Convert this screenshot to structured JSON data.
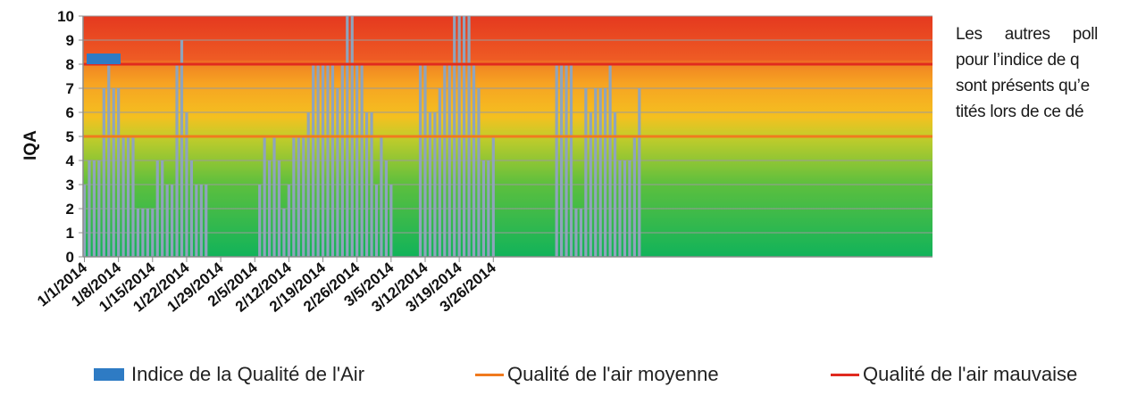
{
  "chart_data": {
    "type": "bar",
    "title": "",
    "ylabel": "IQA",
    "xlabel": "",
    "ylim": [
      0,
      10
    ],
    "yticks": [
      0,
      1,
      2,
      3,
      4,
      5,
      6,
      7,
      8,
      9,
      10
    ],
    "x_start": "1/1/2014",
    "xtick_labels": [
      "1/1/2014",
      "1/8/2014",
      "1/15/2014",
      "1/22/2014",
      "1/29/2014",
      "2/5/2014",
      "2/12/2014",
      "2/19/2014",
      "2/26/2014",
      "3/5/2014",
      "3/12/2014",
      "3/19/2014",
      "3/26/2014"
    ],
    "values": [
      3,
      4,
      4,
      4,
      7,
      8,
      7,
      7,
      5,
      5,
      5,
      2,
      2,
      2,
      2,
      4,
      4,
      3,
      3,
      8,
      9,
      6,
      4,
      3,
      3,
      3,
      0,
      0,
      0,
      0,
      0,
      0,
      0,
      0,
      0,
      0,
      3,
      5,
      4,
      5,
      4,
      2,
      3,
      5,
      5,
      5,
      6,
      8,
      8,
      8,
      8,
      8,
      7,
      8,
      10,
      10,
      8,
      8,
      6,
      6,
      3,
      5,
      4,
      3,
      0,
      0,
      0,
      0,
      0,
      8,
      8,
      6,
      6,
      7,
      8,
      8,
      10,
      10,
      10,
      10,
      8,
      7,
      4,
      4,
      5,
      0,
      0,
      0,
      0,
      0,
      0,
      0,
      0,
      0,
      0,
      0,
      0,
      8,
      8,
      8,
      8,
      2,
      2,
      7,
      6,
      7,
      7,
      7,
      8,
      6,
      4,
      4,
      4,
      5,
      7
    ],
    "series": [
      {
        "name": "Indice de la Qualité de l'Air",
        "color": "#2e7bc4"
      },
      {
        "name": "Qualité de l'air moyenne",
        "color": "#f07a1e",
        "value": 5
      },
      {
        "name": "Qualité de l'air mauvaise",
        "color": "#e02a1f",
        "value": 8
      }
    ],
    "bar_color": "#8fa4bc",
    "grid": true,
    "legend": "bottom"
  },
  "side_text": {
    "lines": [
      "Les autres poll",
      "pour l’indice de q",
      "sont présents qu’e",
      "tités lors de ce dé"
    ]
  }
}
